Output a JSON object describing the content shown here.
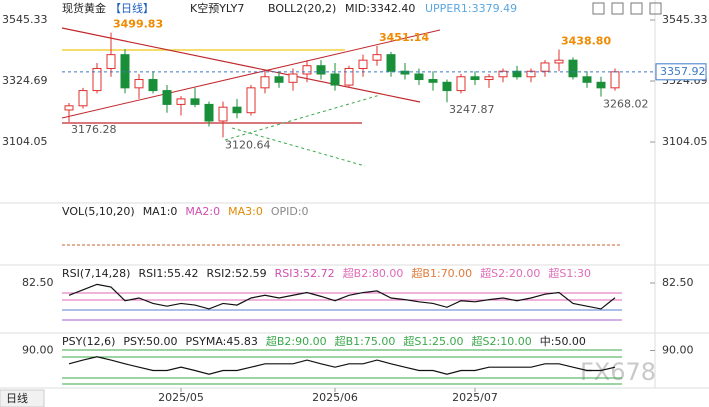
{
  "header": {
    "symbol": "现货黄金",
    "period": "【日线】",
    "indicator": "K空预YLY7",
    "boll": "BOLL2(20,2)",
    "mid": "MID:3342.40",
    "upper": "UPPER1:3379.49"
  },
  "chart_data": {
    "type": "candlestick",
    "categories": [
      null,
      null,
      null,
      null,
      null,
      null,
      null,
      null,
      "2025/05",
      null,
      null,
      null,
      null,
      null,
      null,
      null,
      null,
      null,
      null,
      "2025/06",
      null,
      null,
      null,
      null,
      null,
      null,
      null,
      null,
      null,
      "2025/07",
      null,
      null,
      null,
      null,
      null,
      null,
      null,
      null,
      null,
      null
    ],
    "open": [
      3220,
      3235,
      3290,
      3370,
      3420,
      3300,
      3330,
      3290,
      3240,
      3260,
      3240,
      3180,
      3230,
      3210,
      3300,
      3340,
      3320,
      3350,
      3380,
      3350,
      3310,
      3370,
      3400,
      3420,
      3360,
      3350,
      3330,
      3320,
      3290,
      3340,
      3330,
      3340,
      3360,
      3340,
      3360,
      3390,
      3400,
      3340,
      3320,
      3300
    ],
    "high": [
      3245,
      3300,
      3390,
      3499.83,
      3440,
      3350,
      3360,
      3310,
      3270,
      3300,
      3250,
      3250,
      3260,
      3310,
      3360,
      3360,
      3370,
      3400,
      3400,
      3390,
      3380,
      3420,
      3451.14,
      3430,
      3390,
      3370,
      3360,
      3330,
      3350,
      3360,
      3350,
      3370,
      3380,
      3370,
      3400,
      3438.8,
      3410,
      3360,
      3340,
      3370
    ],
    "low": [
      3176.28,
      3225,
      3280,
      3340,
      3280,
      3260,
      3280,
      3210,
      3200,
      3230,
      3160,
      3120.64,
      3190,
      3200,
      3280,
      3300,
      3290,
      3320,
      3330,
      3290,
      3300,
      3340,
      3380,
      3340,
      3330,
      3310,
      3290,
      3247.87,
      3280,
      3310,
      3300,
      3320,
      3330,
      3320,
      3340,
      3360,
      3330,
      3300,
      3268.02,
      3290
    ],
    "close": [
      3235,
      3290,
      3370,
      3420,
      3300,
      3330,
      3290,
      3240,
      3260,
      3240,
      3180,
      3230,
      3210,
      3300,
      3340,
      3320,
      3350,
      3380,
      3350,
      3310,
      3370,
      3400,
      3420,
      3360,
      3350,
      3330,
      3320,
      3290,
      3340,
      3330,
      3340,
      3360,
      3340,
      3360,
      3390,
      3400,
      3340,
      3320,
      3300,
      3357.92
    ],
    "high_value_labels": [
      null,
      null,
      null,
      "3499.83",
      null,
      null,
      null,
      null,
      null,
      null,
      null,
      null,
      null,
      null,
      null,
      null,
      null,
      null,
      null,
      null,
      null,
      null,
      "3451.14",
      null,
      null,
      null,
      null,
      null,
      null,
      null,
      null,
      null,
      null,
      null,
      null,
      "3438.80",
      null,
      null,
      null,
      null
    ],
    "low_value_labels": [
      "3176.28",
      null,
      null,
      null,
      null,
      null,
      null,
      null,
      null,
      null,
      null,
      "3120.64",
      null,
      null,
      null,
      null,
      null,
      null,
      null,
      null,
      null,
      null,
      null,
      null,
      null,
      null,
      null,
      "3247.87",
      null,
      null,
      null,
      null,
      null,
      null,
      null,
      null,
      null,
      null,
      "3268.02",
      null
    ],
    "last_price": 3357.92,
    "ylim": [
      2894.26,
      3617.67
    ],
    "yticks": [
      3104.05,
      3324.69,
      3545.33
    ],
    "up_color": "#e0302e",
    "down_color": "#1a8f3a",
    "high_label_color": "#f08a00",
    "low_label_color": "#555555"
  },
  "vol_panel": {
    "labels": [
      "VOL(5,10,20)",
      "MA1:0",
      "MA2:0",
      "MA3:0",
      "OPID:0"
    ]
  },
  "rsi_panel": {
    "labels": [
      "RSI(7,14,28)",
      "RSI1:55.42",
      "RSI2:52.59",
      "RSI3:52.72",
      "超B2:80.00",
      "超B1:70.00",
      "超S2:20.00",
      "超S1:30"
    ],
    "ylim": [
      0,
      110
    ],
    "yticks": [
      {
        "value": 82.5,
        "label": "82.50"
      }
    ],
    "values": [
      60,
      70,
      80,
      75,
      50,
      55,
      45,
      40,
      45,
      42,
      35,
      45,
      42,
      55,
      60,
      55,
      60,
      65,
      58,
      50,
      60,
      65,
      68,
      55,
      52,
      48,
      45,
      38,
      50,
      48,
      52,
      55,
      50,
      55,
      62,
      65,
      45,
      40,
      35,
      55.42
    ]
  },
  "psy_panel": {
    "labels": [
      "PSY(12,6)",
      "PSY:50.00",
      "PSYMA:45.83",
      "超B2:90.00",
      "超B1:75.00",
      "超S1:25.00",
      "超S2:10.00",
      "中:50.00"
    ],
    "ylim": [
      0,
      120
    ],
    "yticks": [
      {
        "value": 90,
        "label": "90.00"
      }
    ],
    "values": [
      58,
      67,
      75,
      67,
      58,
      50,
      42,
      42,
      50,
      42,
      33,
      42,
      42,
      50,
      58,
      58,
      58,
      67,
      58,
      50,
      58,
      58,
      67,
      58,
      50,
      42,
      42,
      33,
      42,
      42,
      50,
      50,
      50,
      50,
      58,
      58,
      50,
      42,
      42,
      50
    ]
  },
  "footer": {
    "tab": "日线",
    "watermark": "FX678"
  }
}
